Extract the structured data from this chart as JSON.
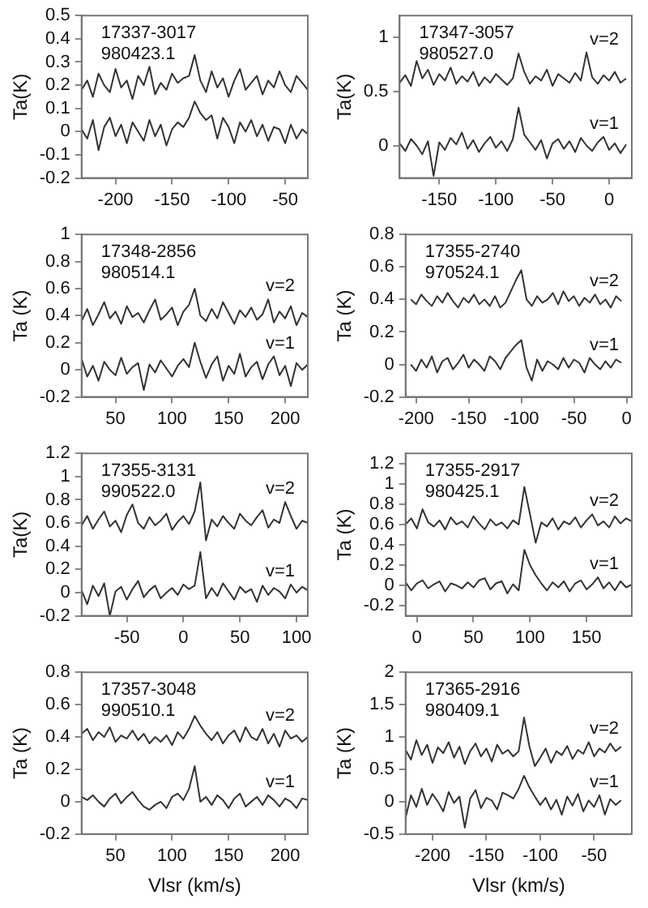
{
  "chart_data": [
    {
      "type": "line",
      "ylabel": "Ta(K)",
      "annotations": [
        "17337-3017",
        "980423.1"
      ],
      "xlim": [
        -230,
        -30
      ],
      "xticks": [
        -200,
        -150,
        -100,
        -50
      ],
      "ylim": [
        -0.2,
        0.5
      ],
      "yticks": [
        -0.2,
        -0.1,
        0,
        0.1,
        0.2,
        0.3,
        0.4,
        0.5
      ],
      "x": [
        -230,
        -225,
        -220,
        -215,
        -210,
        -205,
        -200,
        -195,
        -190,
        -185,
        -180,
        -175,
        -170,
        -165,
        -160,
        -155,
        -150,
        -145,
        -140,
        -135,
        -130,
        -125,
        -120,
        -115,
        -110,
        -105,
        -100,
        -95,
        -90,
        -85,
        -80,
        -75,
        -70,
        -65,
        -60,
        -55,
        -50,
        -45,
        -40,
        -35,
        -30
      ],
      "series": [
        {
          "color": "#333333",
          "values": [
            0.18,
            0.22,
            0.15,
            0.25,
            0.2,
            0.17,
            0.27,
            0.19,
            0.22,
            0.14,
            0.24,
            0.2,
            0.28,
            0.16,
            0.21,
            0.18,
            0.25,
            0.21,
            0.23,
            0.24,
            0.33,
            0.22,
            0.17,
            0.26,
            0.19,
            0.23,
            0.15,
            0.22,
            0.27,
            0.18,
            0.21,
            0.24,
            0.16,
            0.22,
            0.19,
            0.26,
            0.2,
            0.17,
            0.24,
            0.21,
            0.18
          ]
        },
        {
          "color": "#333333",
          "values": [
            0.01,
            -0.03,
            0.05,
            -0.08,
            0.02,
            0.06,
            -0.02,
            0.03,
            -0.05,
            0.04,
            0.0,
            -0.04,
            0.05,
            -0.02,
            0.03,
            -0.06,
            0.01,
            0.04,
            0.02,
            0.06,
            0.13,
            0.08,
            0.05,
            0.07,
            -0.03,
            0.06,
            0.02,
            -0.05,
            0.04,
            0.0,
            0.05,
            -0.02,
            0.03,
            -0.04,
            0.02,
            0.01,
            -0.05,
            0.03,
            -0.03,
            0.01,
            -0.01
          ]
        }
      ]
    },
    {
      "type": "line",
      "ylabel": "Ta(K)",
      "annotations": [
        "17347-3057",
        "980527.0"
      ],
      "xlim": [
        -185,
        20
      ],
      "xticks": [
        -150,
        -100,
        -50,
        0
      ],
      "ylim": [
        -0.3,
        1.2
      ],
      "yticks": [
        0,
        0.5,
        1
      ],
      "x": [
        -185,
        -180,
        -175,
        -170,
        -165,
        -160,
        -155,
        -150,
        -145,
        -140,
        -135,
        -130,
        -125,
        -120,
        -115,
        -110,
        -105,
        -100,
        -95,
        -90,
        -85,
        -80,
        -75,
        -70,
        -65,
        -60,
        -55,
        -50,
        -45,
        -40,
        -35,
        -30,
        -25,
        -20,
        -15,
        -10,
        -5,
        0,
        5,
        10,
        15
      ],
      "series": [
        {
          "name": "v=2",
          "color": "#333333",
          "values": [
            0.58,
            0.65,
            0.55,
            0.78,
            0.62,
            0.7,
            0.56,
            0.66,
            0.6,
            0.72,
            0.57,
            0.64,
            0.59,
            0.68,
            0.55,
            0.63,
            0.58,
            0.66,
            0.61,
            0.56,
            0.62,
            0.85,
            0.68,
            0.57,
            0.64,
            0.6,
            0.7,
            0.55,
            0.66,
            0.62,
            0.58,
            0.67,
            0.6,
            0.86,
            0.63,
            0.57,
            0.65,
            0.6,
            0.68,
            0.58,
            0.62
          ]
        },
        {
          "name": "v=1",
          "color": "#333333",
          "values": [
            0.02,
            -0.05,
            0.06,
            0.0,
            -0.08,
            0.04,
            -0.28,
            0.03,
            -0.04,
            0.07,
            0.01,
            0.12,
            -0.03,
            0.05,
            -0.06,
            0.02,
            0.08,
            -0.02,
            0.04,
            -0.05,
            0.06,
            0.35,
            0.1,
            0.03,
            -0.04,
            0.05,
            -0.12,
            0.02,
            0.06,
            -0.03,
            0.04,
            -0.06,
            0.07,
            0.0,
            -0.05,
            0.03,
            0.08,
            -0.04,
            0.02,
            -0.07,
            0.01
          ]
        }
      ]
    },
    {
      "type": "line",
      "ylabel": "Ta (K)",
      "annotations": [
        "17348-2856",
        "980514.1"
      ],
      "xlim": [
        20,
        220
      ],
      "xticks": [
        50,
        100,
        150,
        200
      ],
      "ylim": [
        -0.2,
        1
      ],
      "yticks": [
        -0.2,
        0,
        0.2,
        0.4,
        0.6,
        0.8,
        1
      ],
      "x": [
        20,
        25,
        30,
        35,
        40,
        45,
        50,
        55,
        60,
        65,
        70,
        75,
        80,
        85,
        90,
        95,
        100,
        105,
        110,
        115,
        120,
        125,
        130,
        135,
        140,
        145,
        150,
        155,
        160,
        165,
        170,
        175,
        180,
        185,
        190,
        195,
        200,
        205,
        210,
        215,
        220
      ],
      "series": [
        {
          "name": "v=2",
          "color": "#333333",
          "values": [
            0.36,
            0.45,
            0.33,
            0.41,
            0.5,
            0.38,
            0.43,
            0.34,
            0.47,
            0.39,
            0.42,
            0.35,
            0.44,
            0.52,
            0.37,
            0.41,
            0.46,
            0.33,
            0.43,
            0.48,
            0.6,
            0.4,
            0.36,
            0.45,
            0.38,
            0.5,
            0.42,
            0.34,
            0.44,
            0.39,
            0.46,
            0.37,
            0.41,
            0.52,
            0.35,
            0.43,
            0.38,
            0.47,
            0.33,
            0.42,
            0.39
          ]
        },
        {
          "name": "v=1",
          "color": "#333333",
          "values": [
            0.08,
            -0.05,
            0.03,
            -0.08,
            0.06,
            0.0,
            -0.04,
            0.09,
            -0.03,
            0.02,
            0.05,
            -0.15,
            0.04,
            -0.02,
            0.07,
            0.01,
            -0.05,
            0.03,
            0.08,
            0.02,
            0.2,
            0.06,
            -0.06,
            0.04,
            0.1,
            -0.08,
            0.03,
            -0.03,
            0.12,
            -0.05,
            0.02,
            0.06,
            -0.07,
            0.04,
            0.1,
            -0.04,
            0.03,
            -0.12,
            0.05,
            0.0,
            0.04
          ]
        }
      ]
    },
    {
      "type": "line",
      "ylabel": "Ta (K)",
      "annotations": [
        "17355-2740",
        "970524.1"
      ],
      "xlim": [
        -210,
        5
      ],
      "xticks": [
        -200,
        -150,
        -100,
        -50,
        0
      ],
      "ylim": [
        -0.2,
        0.8
      ],
      "yticks": [
        -0.2,
        0,
        0.2,
        0.4,
        0.6,
        0.8
      ],
      "x": [
        -205,
        -200,
        -195,
        -190,
        -185,
        -180,
        -175,
        -170,
        -165,
        -160,
        -155,
        -150,
        -145,
        -140,
        -135,
        -130,
        -125,
        -120,
        -115,
        -110,
        -105,
        -100,
        -95,
        -90,
        -85,
        -80,
        -75,
        -70,
        -65,
        -60,
        -55,
        -50,
        -45,
        -40,
        -35,
        -30,
        -25,
        -20,
        -15,
        -10,
        -5
      ],
      "series": [
        {
          "name": "v=2",
          "color": "#333333",
          "values": [
            0.4,
            0.37,
            0.43,
            0.39,
            0.36,
            0.42,
            0.38,
            0.44,
            0.39,
            0.35,
            0.41,
            0.38,
            0.43,
            0.37,
            0.4,
            0.36,
            0.42,
            0.35,
            0.38,
            0.45,
            0.52,
            0.58,
            0.4,
            0.36,
            0.42,
            0.38,
            0.4,
            0.44,
            0.37,
            0.45,
            0.39,
            0.42,
            0.36,
            0.41,
            0.38,
            0.43,
            0.37,
            0.4,
            0.35,
            0.42,
            0.39
          ]
        },
        {
          "name": "v=1",
          "color": "#333333",
          "values": [
            0.0,
            -0.04,
            0.03,
            -0.02,
            0.05,
            -0.05,
            0.02,
            0.04,
            -0.03,
            0.01,
            0.06,
            -0.02,
            0.03,
            0.0,
            -0.04,
            0.05,
            0.02,
            -0.03,
            0.04,
            0.08,
            0.12,
            0.15,
            -0.02,
            -0.1,
            0.03,
            -0.04,
            0.02,
            0.0,
            -0.03,
            0.04,
            -0.02,
            0.03,
            0.01,
            -0.05,
            0.04,
            0.0,
            -0.03,
            0.02,
            -0.02,
            0.03,
            0.01
          ]
        }
      ]
    },
    {
      "type": "line",
      "ylabel": "Ta(K)",
      "annotations": [
        "17355-3131",
        "990522.0"
      ],
      "xlim": [
        -90,
        110
      ],
      "xticks": [
        -50,
        0,
        50,
        100
      ],
      "ylim": [
        -0.2,
        1.2
      ],
      "yticks": [
        -0.2,
        0,
        0.2,
        0.4,
        0.6,
        0.8,
        1,
        1.2
      ],
      "x": [
        -90,
        -85,
        -80,
        -75,
        -70,
        -65,
        -60,
        -55,
        -50,
        -45,
        -40,
        -35,
        -30,
        -25,
        -20,
        -15,
        -10,
        -5,
        0,
        5,
        10,
        15,
        20,
        25,
        30,
        35,
        40,
        45,
        50,
        55,
        60,
        65,
        70,
        75,
        80,
        85,
        90,
        95,
        100,
        105,
        110
      ],
      "series": [
        {
          "name": "v=2",
          "color": "#333333",
          "values": [
            0.58,
            0.66,
            0.55,
            0.63,
            0.7,
            0.57,
            0.62,
            0.52,
            0.67,
            0.76,
            0.6,
            0.55,
            0.65,
            0.58,
            0.62,
            0.68,
            0.54,
            0.61,
            0.66,
            0.59,
            0.7,
            0.95,
            0.45,
            0.63,
            0.57,
            0.66,
            0.6,
            0.55,
            0.68,
            0.62,
            0.58,
            0.65,
            0.71,
            0.56,
            0.63,
            0.6,
            0.78,
            0.66,
            0.55,
            0.62,
            0.6
          ]
        },
        {
          "name": "v=1",
          "color": "#333333",
          "values": [
            0.02,
            -0.1,
            0.06,
            -0.03,
            0.08,
            -0.2,
            0.01,
            0.05,
            -0.06,
            0.03,
            0.1,
            -0.04,
            0.02,
            0.06,
            -0.05,
            0.0,
            0.04,
            -0.02,
            0.07,
            0.03,
            0.06,
            0.35,
            -0.05,
            0.04,
            -0.03,
            0.08,
            0.01,
            -0.06,
            0.05,
            0.0,
            0.03,
            -0.08,
            0.06,
            -0.02,
            0.04,
            0.01,
            -0.05,
            0.07,
            0.0,
            0.05,
            0.02
          ]
        }
      ]
    },
    {
      "type": "line",
      "ylabel": "Ta (K)",
      "annotations": [
        "17355-2917",
        "980425.1"
      ],
      "xlim": [
        -10,
        190
      ],
      "xticks": [
        0,
        50,
        100,
        150
      ],
      "ylim": [
        -0.3,
        1.3
      ],
      "yticks": [
        -0.2,
        0,
        0.2,
        0.4,
        0.6,
        0.8,
        1,
        1.2
      ],
      "x": [
        -10,
        -5,
        0,
        5,
        10,
        15,
        20,
        25,
        30,
        35,
        40,
        45,
        50,
        55,
        60,
        65,
        70,
        75,
        80,
        85,
        90,
        95,
        100,
        105,
        110,
        115,
        120,
        125,
        130,
        135,
        140,
        145,
        150,
        155,
        160,
        165,
        170,
        175,
        180,
        185,
        190
      ],
      "series": [
        {
          "name": "v=2",
          "color": "#333333",
          "values": [
            0.6,
            0.66,
            0.56,
            0.75,
            0.62,
            0.58,
            0.64,
            0.55,
            0.67,
            0.6,
            0.63,
            0.57,
            0.68,
            0.61,
            0.55,
            0.65,
            0.59,
            0.62,
            0.56,
            0.64,
            0.6,
            0.97,
            0.7,
            0.42,
            0.62,
            0.58,
            0.66,
            0.55,
            0.63,
            0.6,
            0.67,
            0.57,
            0.64,
            0.7,
            0.59,
            0.63,
            0.57,
            0.68,
            0.61,
            0.66,
            0.63
          ]
        },
        {
          "name": "v=1",
          "color": "#333333",
          "values": [
            0.03,
            -0.05,
            0.02,
            0.05,
            -0.03,
            0.01,
            0.04,
            -0.06,
            0.02,
            0.0,
            -0.03,
            0.03,
            -0.02,
            0.05,
            0.07,
            -0.04,
            0.02,
            0.04,
            -0.08,
            0.01,
            -0.05,
            0.35,
            0.2,
            0.1,
            0.02,
            -0.05,
            0.03,
            -0.02,
            0.04,
            -0.06,
            0.02,
            0.05,
            -0.04,
            0.01,
            0.08,
            -0.03,
            0.03,
            -0.05,
            0.04,
            -0.02,
            0.01
          ]
        }
      ]
    },
    {
      "type": "line",
      "ylabel": "Ta (K)",
      "xlabel": "Vlsr (km/s)",
      "annotations": [
        "17357-3048",
        "990510.1"
      ],
      "xlim": [
        20,
        220
      ],
      "xticks": [
        50,
        100,
        150,
        200
      ],
      "ylim": [
        -0.2,
        0.8
      ],
      "yticks": [
        -0.2,
        0,
        0.2,
        0.4,
        0.6,
        0.8
      ],
      "x": [
        20,
        25,
        30,
        35,
        40,
        45,
        50,
        55,
        60,
        65,
        70,
        75,
        80,
        85,
        90,
        95,
        100,
        105,
        110,
        115,
        120,
        125,
        130,
        135,
        140,
        145,
        150,
        155,
        160,
        165,
        170,
        175,
        180,
        185,
        190,
        195,
        200,
        205,
        210,
        215,
        220
      ],
      "series": [
        {
          "name": "v=2",
          "color": "#333333",
          "values": [
            0.42,
            0.45,
            0.38,
            0.43,
            0.4,
            0.46,
            0.37,
            0.41,
            0.39,
            0.44,
            0.38,
            0.42,
            0.36,
            0.4,
            0.37,
            0.41,
            0.35,
            0.43,
            0.39,
            0.45,
            0.53,
            0.47,
            0.42,
            0.38,
            0.43,
            0.36,
            0.41,
            0.44,
            0.37,
            0.46,
            0.4,
            0.38,
            0.45,
            0.36,
            0.42,
            0.34,
            0.44,
            0.39,
            0.41,
            0.37,
            0.4
          ]
        },
        {
          "name": "v=1",
          "color": "#333333",
          "values": [
            0.03,
            0.01,
            0.04,
            0.0,
            -0.03,
            0.02,
            0.05,
            -0.01,
            0.03,
            0.06,
            0.01,
            -0.03,
            -0.05,
            -0.02,
            0.0,
            -0.04,
            0.03,
            0.05,
            0.01,
            0.08,
            0.22,
            0.0,
            0.03,
            -0.02,
            0.04,
            0.01,
            -0.04,
            0.02,
            0.05,
            -0.03,
            0.0,
            0.03,
            -0.02,
            0.04,
            0.01,
            -0.03,
            0.02,
            0.0,
            -0.04,
            0.02,
            0.01
          ]
        }
      ]
    },
    {
      "type": "line",
      "ylabel": "Ta (K)",
      "xlabel": "Vlsr (km/s)",
      "annotations": [
        "17365-2916",
        "980409.1"
      ],
      "xlim": [
        -225,
        -15
      ],
      "xticks": [
        -200,
        -150,
        -100,
        -50
      ],
      "ylim": [
        -0.5,
        2
      ],
      "yticks": [
        -0.5,
        0,
        0.5,
        1,
        1.5,
        2
      ],
      "x": [
        -225,
        -220,
        -215,
        -210,
        -205,
        -200,
        -195,
        -190,
        -185,
        -180,
        -175,
        -170,
        -165,
        -160,
        -155,
        -150,
        -145,
        -140,
        -135,
        -130,
        -125,
        -120,
        -115,
        -110,
        -105,
        -100,
        -95,
        -90,
        -85,
        -80,
        -75,
        -70,
        -65,
        -60,
        -55,
        -50,
        -45,
        -40,
        -35,
        -30,
        -25
      ],
      "series": [
        {
          "name": "v=2",
          "color": "#333333",
          "values": [
            0.8,
            0.65,
            0.95,
            0.72,
            0.88,
            0.6,
            0.84,
            0.75,
            0.92,
            0.68,
            0.85,
            0.58,
            0.78,
            0.9,
            0.7,
            0.82,
            0.62,
            0.88,
            0.74,
            0.8,
            0.7,
            0.78,
            1.3,
            0.85,
            0.55,
            0.68,
            0.82,
            0.6,
            0.78,
            0.72,
            0.86,
            0.66,
            0.8,
            0.74,
            0.92,
            0.7,
            0.82,
            0.76,
            0.9,
            0.78,
            0.85
          ]
        },
        {
          "name": "v=1",
          "color": "#333333",
          "values": [
            -0.25,
            0.1,
            -0.08,
            0.2,
            -0.05,
            0.12,
            0.0,
            -0.15,
            0.15,
            -0.02,
            0.08,
            -0.4,
            0.05,
            0.18,
            -0.1,
            0.06,
            0.02,
            -0.12,
            0.14,
            0.1,
            0.05,
            0.2,
            0.4,
            0.22,
            0.08,
            -0.05,
            0.06,
            -0.12,
            0.03,
            -0.2,
            0.08,
            -0.06,
            0.12,
            -0.15,
            0.02,
            -0.08,
            0.1,
            -0.2,
            0.04,
            -0.05,
            0.02
          ]
        }
      ]
    }
  ]
}
